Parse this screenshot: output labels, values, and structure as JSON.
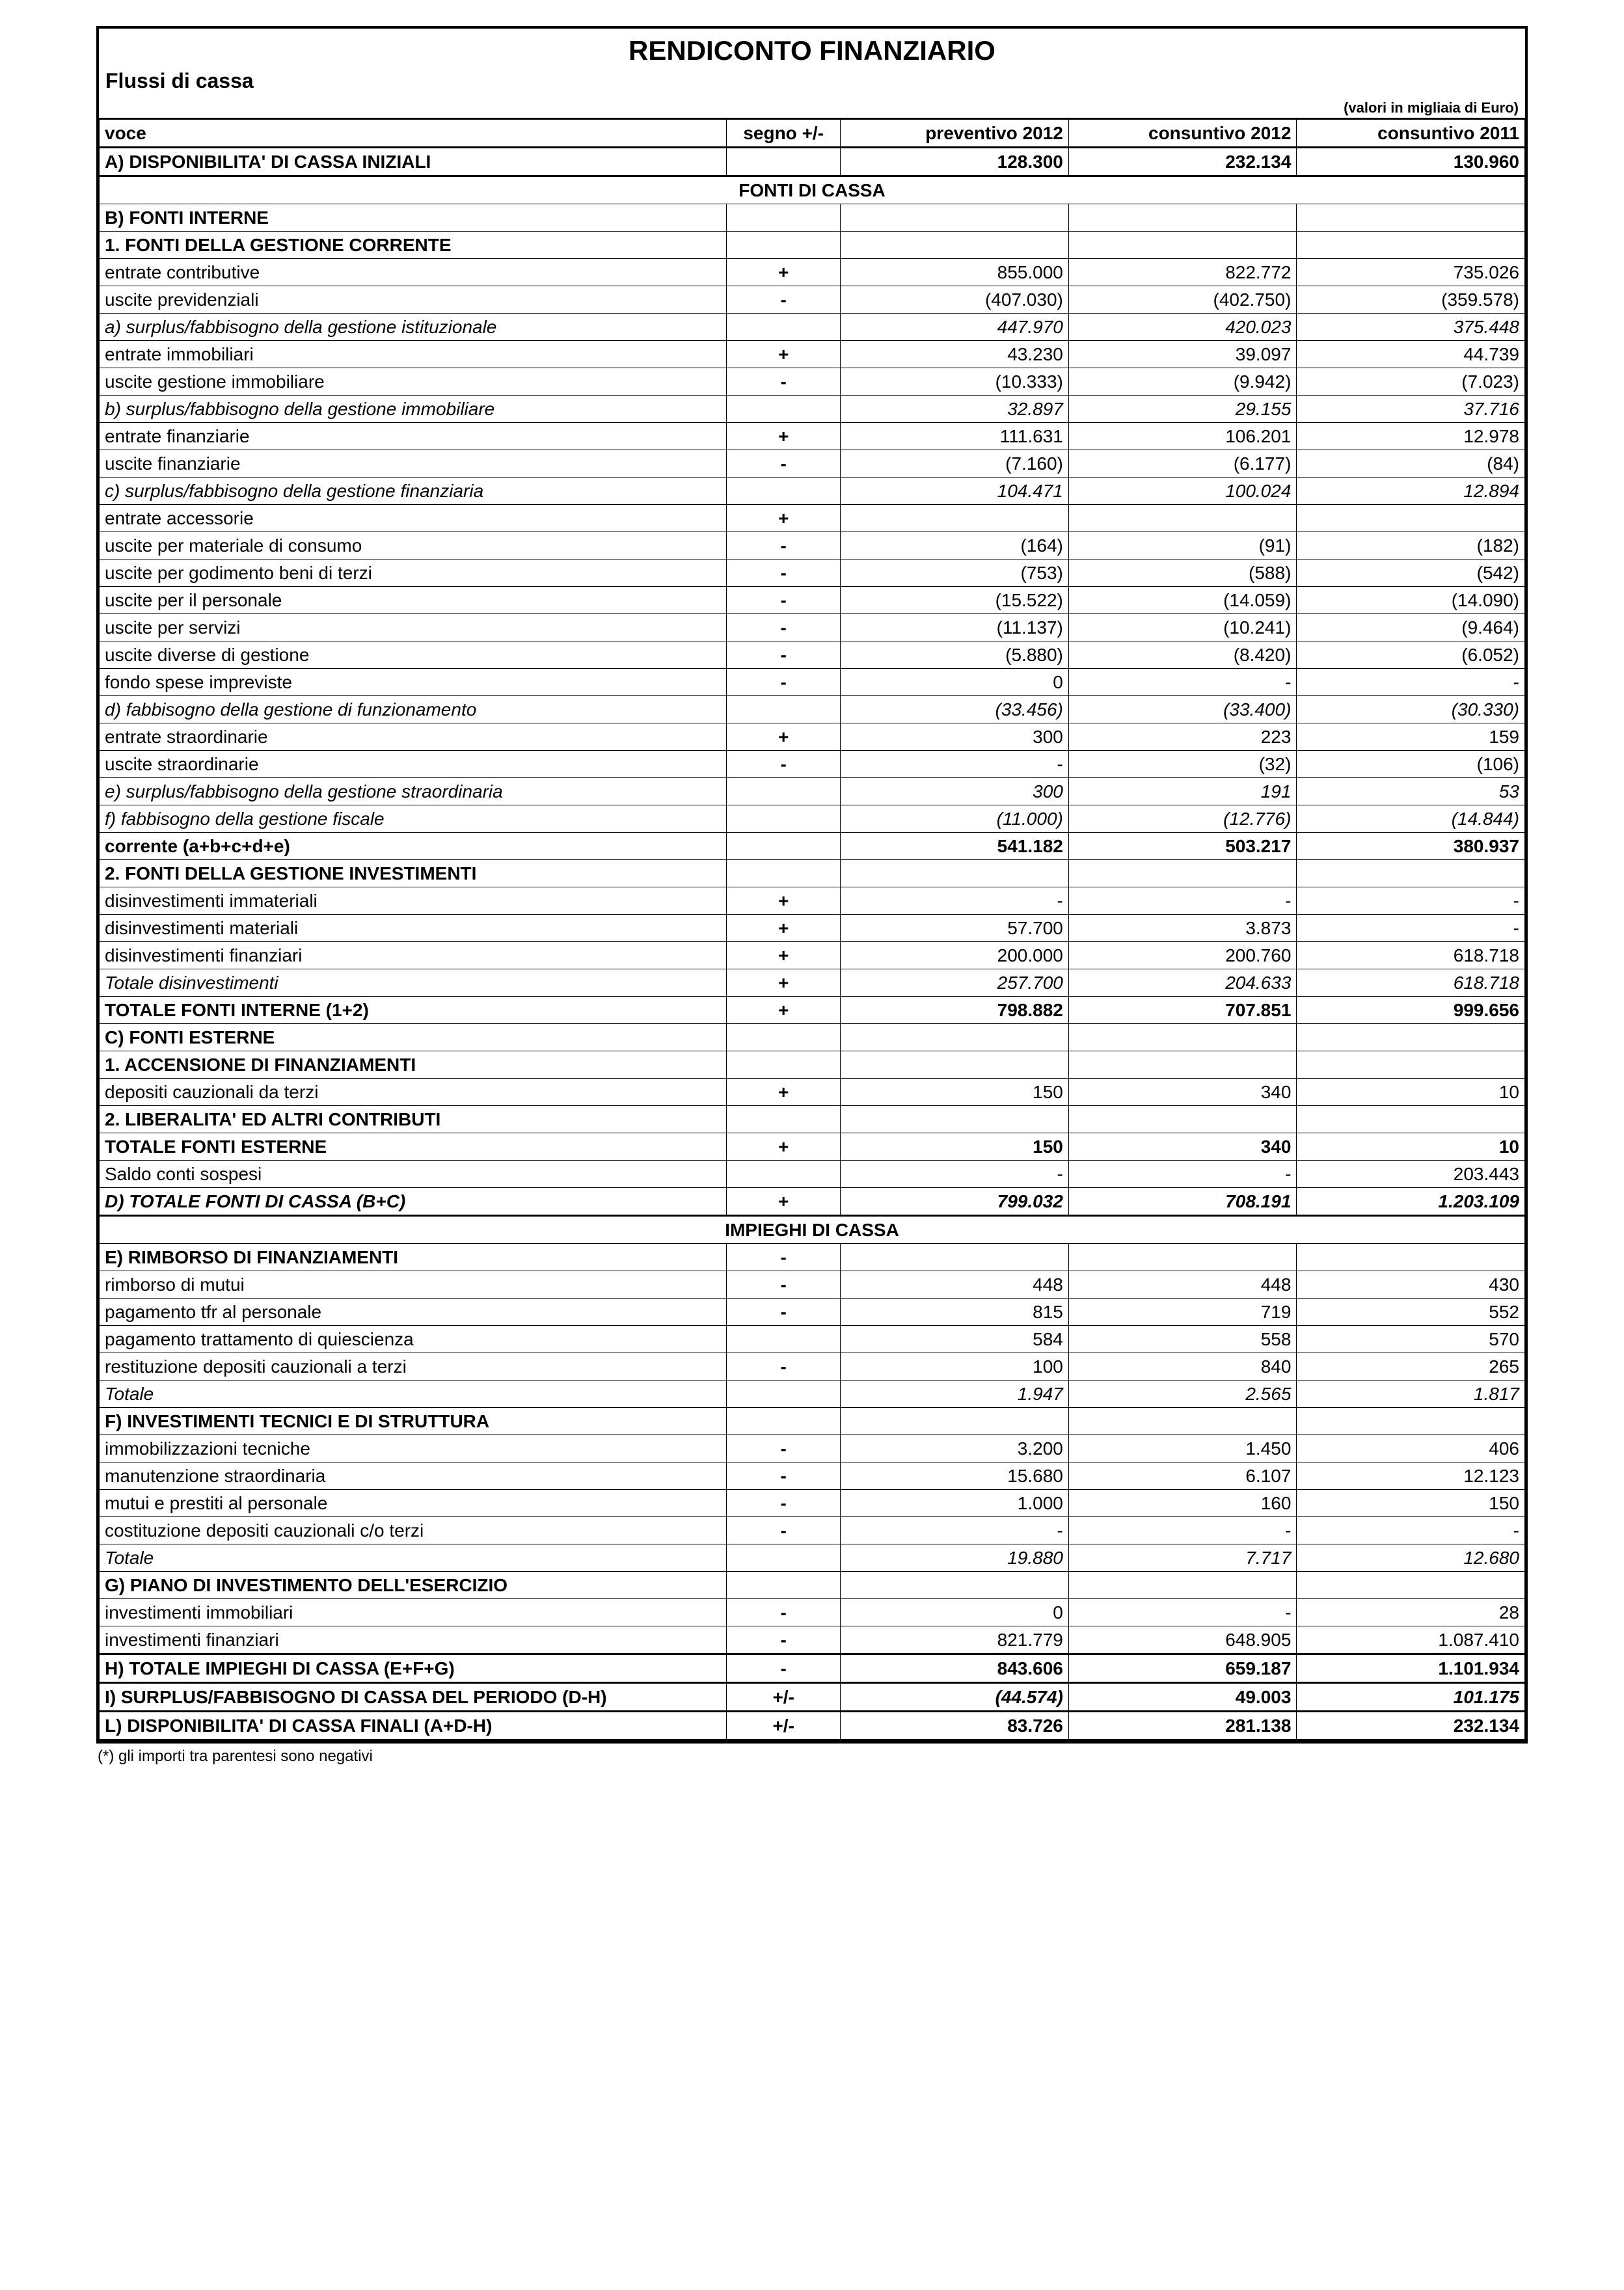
{
  "title": "RENDICONTO FINANZIARIO",
  "subtitle": "Flussi di cassa",
  "unit_note": "(valori in migliaia di Euro)",
  "footnote": "(*) gli importi tra parentesi sono negativi",
  "columns": {
    "voce": "voce",
    "segno": "segno +/-",
    "c1": "preventivo  2012",
    "c2": "consuntivo 2012",
    "c3": "consuntivo 2011"
  },
  "rows": [
    {
      "style": "bold",
      "thick_top": true,
      "voce": "A) DISPONIBILITA' DI CASSA INIZIALI",
      "segno": "",
      "c1": "128.300",
      "c2": "232.134",
      "c3": "130.960"
    },
    {
      "style": "section",
      "thick_top": true,
      "voce": "FONTI DI CASSA"
    },
    {
      "style": "bold",
      "voce": "B) FONTI INTERNE"
    },
    {
      "style": "bold",
      "voce": "1. FONTI DELLA GESTIONE CORRENTE"
    },
    {
      "voce": "entrate contributive",
      "segno": "+",
      "c1": "855.000",
      "c2": "822.772",
      "c3": "735.026"
    },
    {
      "voce": "uscite previdenziali",
      "segno": "-",
      "c1": "(407.030)",
      "c2": "(402.750)",
      "c3": "(359.578)"
    },
    {
      "style": "italic",
      "voce": "a) surplus/fabbisogno della gestione istituzionale",
      "c1": "447.970",
      "c2": "420.023",
      "c3": "375.448"
    },
    {
      "voce": "entrate immobiliari",
      "segno": "+",
      "c1": "43.230",
      "c2": "39.097",
      "c3": "44.739"
    },
    {
      "voce": "uscite gestione immobiliare",
      "segno": "-",
      "c1": "(10.333)",
      "c2": "(9.942)",
      "c3": "(7.023)"
    },
    {
      "style": "italic",
      "voce": "b) surplus/fabbisogno della gestione immobiliare",
      "c1": "32.897",
      "c2": "29.155",
      "c3": "37.716"
    },
    {
      "voce": "entrate finanziarie",
      "segno": "+",
      "c1": "111.631",
      "c2": "106.201",
      "c3": "12.978"
    },
    {
      "voce": "uscite finanziarie",
      "segno": "-",
      "c1": "(7.160)",
      "c2": "(6.177)",
      "c3": "(84)"
    },
    {
      "style": "italic",
      "voce": "c) surplus/fabbisogno della gestione finanziaria",
      "c1": "104.471",
      "c2": "100.024",
      "c3": "12.894"
    },
    {
      "voce": "entrate accessorie",
      "segno": "+"
    },
    {
      "voce": "uscite per materiale di consumo",
      "segno": "-",
      "c1": "(164)",
      "c2": "(91)",
      "c3": "(182)"
    },
    {
      "voce": "uscite per godimento beni di terzi",
      "segno": "-",
      "c1": "(753)",
      "c2": "(588)",
      "c3": "(542)"
    },
    {
      "voce": "uscite per il personale",
      "segno": "-",
      "c1": "(15.522)",
      "c2": "(14.059)",
      "c3": "(14.090)"
    },
    {
      "voce": "uscite per servizi",
      "segno": "-",
      "c1": "(11.137)",
      "c2": "(10.241)",
      "c3": "(9.464)"
    },
    {
      "voce": "uscite diverse di gestione",
      "segno": "-",
      "c1": "(5.880)",
      "c2": "(8.420)",
      "c3": "(6.052)"
    },
    {
      "voce": "fondo spese impreviste",
      "segno": "-",
      "c1": "0",
      "c2": "-",
      "c3": "-"
    },
    {
      "style": "italic",
      "voce": "d) fabbisogno della gestione di funzionamento",
      "c1": "(33.456)",
      "c2": "(33.400)",
      "c3": "(30.330)"
    },
    {
      "voce": "entrate straordinarie",
      "segno": "+",
      "c1": "300",
      "c2": "223",
      "c3": "159"
    },
    {
      "voce": "uscite straordinarie",
      "segno": "-",
      "c1": "-",
      "c2": "(32)",
      "c3": "(106)"
    },
    {
      "style": "italic",
      "voce": "e) surplus/fabbisogno della gestione straordinaria",
      "c1": "300",
      "c2": "191",
      "c3": "53"
    },
    {
      "style": "italic",
      "voce": "f) fabbisogno della gestione fiscale",
      "c1": "(11.000)",
      "c2": "(12.776)",
      "c3": "(14.844)"
    },
    {
      "style": "bold",
      "voce": "corrente (a+b+c+d+e)",
      "c1": "541.182",
      "c2": "503.217",
      "c3": "380.937"
    },
    {
      "style": "bold",
      "voce": "2. FONTI DELLA GESTIONE INVESTIMENTI"
    },
    {
      "voce": "disinvestimenti immateriali",
      "segno": "+",
      "c1": "-",
      "c2": "-",
      "c3": "-"
    },
    {
      "voce": "disinvestimenti materiali",
      "segno": "+",
      "c1": "57.700",
      "c2": "3.873",
      "c3": "-"
    },
    {
      "voce": "disinvestimenti finanziari",
      "segno": "+",
      "c1": "200.000",
      "c2": "200.760",
      "c3": "618.718"
    },
    {
      "style": "italic",
      "voce": "Totale disinvestimenti",
      "segno": "+",
      "c1": "257.700",
      "c2": "204.633",
      "c3": "618.718"
    },
    {
      "style": "bold",
      "voce": "TOTALE FONTI INTERNE (1+2)",
      "segno": "+",
      "c1": "798.882",
      "c2": "707.851",
      "c3": "999.656"
    },
    {
      "style": "bold",
      "voce": "C) FONTI ESTERNE"
    },
    {
      "style": "bold",
      "voce": "1. ACCENSIONE DI FINANZIAMENTI"
    },
    {
      "voce": "depositi cauzionali da terzi",
      "segno": "+",
      "c1": "150",
      "c2": "340",
      "c3": "10"
    },
    {
      "style": "bold",
      "voce": "2. LIBERALITA' ED ALTRI CONTRIBUTI"
    },
    {
      "style": "bold",
      "voce": "TOTALE FONTI ESTERNE",
      "segno": "+",
      "c1": "150",
      "c2": "340",
      "c3": "10"
    },
    {
      "voce": "Saldo conti sospesi",
      "c1": "-",
      "c2": "-",
      "c3": "203.443"
    },
    {
      "style": "bolditalic",
      "thick_bottom": true,
      "voce": "D) TOTALE FONTI DI CASSA  (B+C)",
      "segno": "+",
      "c1": "799.032",
      "c2": "708.191",
      "c3": "1.203.109"
    },
    {
      "style": "section",
      "voce": "IMPIEGHI DI CASSA"
    },
    {
      "style": "bold",
      "voce": "E) RIMBORSO DI FINANZIAMENTI",
      "segno": "-"
    },
    {
      "voce": "rimborso di mutui",
      "segno": "-",
      "c1": "448",
      "c2": "448",
      "c3": "430"
    },
    {
      "voce": "pagamento tfr al personale",
      "segno": "-",
      "c1": "815",
      "c2": "719",
      "c3": "552"
    },
    {
      "voce": "pagamento trattamento di quiescienza",
      "c1": "584",
      "c2": "558",
      "c3": "570"
    },
    {
      "voce": "restituzione depositi cauzionali a terzi",
      "segno": "-",
      "c1": "100",
      "c2": "840",
      "c3": "265"
    },
    {
      "style": "italic",
      "voce": "Totale",
      "c1": "1.947",
      "c2": "2.565",
      "c3": "1.817"
    },
    {
      "style": "bold",
      "voce": "F) INVESTIMENTI TECNICI E DI STRUTTURA"
    },
    {
      "voce": "immobilizzazioni tecniche",
      "segno": "-",
      "c1": "3.200",
      "c2": "1.450",
      "c3": "406"
    },
    {
      "voce": "manutenzione straordinaria",
      "segno": "-",
      "c1": "15.680",
      "c2": "6.107",
      "c3": "12.123"
    },
    {
      "voce": "mutui e prestiti al personale",
      "segno": "-",
      "c1": "1.000",
      "c2": "160",
      "c3": "150"
    },
    {
      "voce": "costituzione depositi cauzionali c/o terzi",
      "segno": "-",
      "c1": "-",
      "c2": "-",
      "c3": "-"
    },
    {
      "style": "italic",
      "voce": "Totale",
      "c1": "19.880",
      "c2": "7.717",
      "c3": "12.680"
    },
    {
      "style": "bold",
      "voce": "G) PIANO DI INVESTIMENTO DELL'ESERCIZIO"
    },
    {
      "voce": "investimenti immobiliari",
      "segno": "-",
      "c1": "0",
      "c2": "-",
      "c3": "28"
    },
    {
      "voce": "investimenti finanziari",
      "segno": "-",
      "c1": "821.779",
      "c2": "648.905",
      "c3": "1.087.410"
    },
    {
      "style": "bold",
      "thick_top": true,
      "voce": "H) TOTALE IMPIEGHI DI CASSA (E+F+G)",
      "segno": "-",
      "c1": "843.606",
      "c2": "659.187",
      "c3": "1.101.934"
    },
    {
      "style": "bold",
      "thick_top": true,
      "voce": "I) SURPLUS/FABBISOGNO DI CASSA DEL PERIODO (D-H)",
      "segno": "+/-",
      "c1": "(44.574)",
      "c1_style": "italic",
      "c2": "49.003",
      "c3": "101.175",
      "c3_style": "italic"
    },
    {
      "style": "bold",
      "thick_top": true,
      "thick_bottom": true,
      "voce": "L) DISPONIBILITA' DI CASSA FINALI (A+D-H)",
      "segno": "+/-",
      "c1": "83.726",
      "c2": "281.138",
      "c3": "232.134"
    }
  ]
}
